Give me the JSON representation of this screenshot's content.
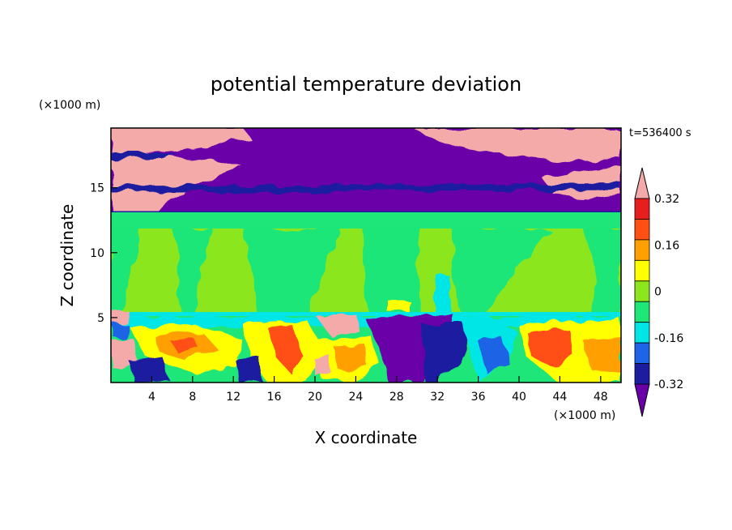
{
  "chart_data": {
    "type": "heatmap",
    "title": "potential temperature deviation",
    "xlabel": "X coordinate",
    "ylabel": "Z coordinate",
    "x_unit": "(×1000 m)",
    "y_unit": "(×1000 m)",
    "time_label": "t=536400 s",
    "xlim": [
      0,
      50
    ],
    "ylim": [
      0,
      19.6
    ],
    "x_ticks": [
      4,
      8,
      12,
      16,
      20,
      24,
      28,
      32,
      36,
      40,
      44,
      48
    ],
    "y_ticks": [
      5,
      10,
      15
    ],
    "colorbar": {
      "labels": [
        "0.32",
        "0.16",
        "0",
        "-0.16",
        "-0.32"
      ],
      "label_values": [
        0.32,
        0.16,
        0,
        -0.16,
        -0.32
      ],
      "levels": [
        -0.4,
        -0.32,
        -0.24,
        -0.16,
        -0.08,
        0,
        0.08,
        0.16,
        0.24,
        0.32,
        0.4
      ],
      "colors": [
        "#6a00a8",
        "#1c1ca0",
        "#1e64e6",
        "#00e6e6",
        "#1ee678",
        "#8ce61e",
        "#ffff00",
        "#ffa000",
        "#ff5014",
        "#e61e1e",
        "#f5aaaa"
      ],
      "extend": "both"
    },
    "layers": [
      {
        "z_range": [
          13.5,
          19.6
        ],
        "description_value": "mostly below -0.4 with patches above 0.4"
      },
      {
        "z_range": [
          5.4,
          13.5
        ],
        "description_value": "between -0.08 and 0.08"
      },
      {
        "z_range": [
          0,
          5.4
        ],
        "description_value": "turbulent mixture -0.4 to 0.4"
      }
    ]
  }
}
